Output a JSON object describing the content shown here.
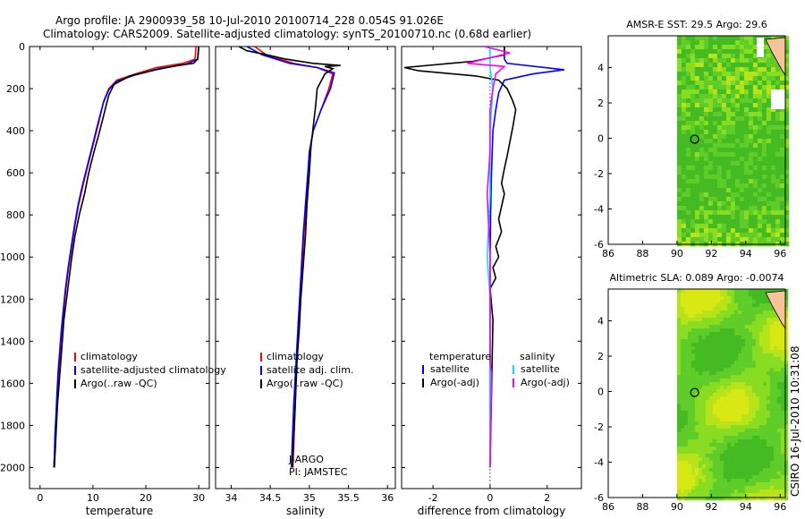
{
  "header": {
    "line1": "Argo profile: JA 2900939_58 10-Jul-2010 20100714_228 0.054S 91.026E",
    "line2": "Climatology: CARS2009. Satellite-adjusted climatology: synTS_20100710.nc (0.68d earlier)"
  },
  "side_label": "CSIRO 16-Jul-2010 10:31:08",
  "colors": {
    "climatology": "#ff0000",
    "satellite": "#0000ff",
    "argo": "#000000",
    "sat_salinity": "#00e5ff",
    "argo_salinity": "#ff00ff",
    "map_green": "#55cc22",
    "map_yellow": "#d4e600",
    "land": "#f7c39a"
  },
  "chart_data": [
    {
      "type": "line",
      "name": "temperature-profile",
      "xlabel": "temperature",
      "xlim": [
        -2,
        32
      ],
      "ylim": [
        2100,
        0
      ],
      "xticks": [
        0,
        10,
        20,
        30
      ],
      "yticks": [
        0,
        200,
        400,
        600,
        800,
        1000,
        1200,
        1400,
        1600,
        1800,
        2000
      ],
      "legend": [
        "climatology",
        "satellite-adjusted climatology",
        "Argo(..raw -QC)"
      ],
      "series": [
        {
          "name": "climatology",
          "color": "#ff0000",
          "points": [
            [
              29.5,
              0
            ],
            [
              29.3,
              60
            ],
            [
              27,
              80
            ],
            [
              22,
              100
            ],
            [
              18,
              130
            ],
            [
              14.5,
              160
            ],
            [
              13,
              200
            ],
            [
              12,
              260
            ],
            [
              11.2,
              350
            ],
            [
              10.2,
              450
            ],
            [
              9.2,
              550
            ],
            [
              8.2,
              650
            ],
            [
              7.3,
              750
            ],
            [
              6.6,
              850
            ],
            [
              6,
              950
            ],
            [
              5.4,
              1050
            ],
            [
              4.9,
              1150
            ],
            [
              4.5,
              1250
            ],
            [
              4.1,
              1350
            ],
            [
              3.8,
              1450
            ],
            [
              3.5,
              1550
            ],
            [
              3.3,
              1650
            ],
            [
              3.1,
              1750
            ],
            [
              2.9,
              1850
            ],
            [
              2.7,
              1950
            ],
            [
              2.6,
              2000
            ]
          ]
        },
        {
          "name": "satellite-adjusted climatology",
          "color": "#0000ff",
          "points": [
            [
              30,
              0
            ],
            [
              29.8,
              60
            ],
            [
              27.5,
              85
            ],
            [
              22.5,
              105
            ],
            [
              18,
              135
            ],
            [
              14.5,
              165
            ],
            [
              13,
              205
            ],
            [
              12,
              265
            ],
            [
              11.1,
              350
            ],
            [
              10.1,
              450
            ],
            [
              9.1,
              550
            ],
            [
              8.1,
              650
            ],
            [
              7.2,
              750
            ],
            [
              6.5,
              850
            ],
            [
              5.9,
              950
            ],
            [
              5.3,
              1050
            ],
            [
              4.8,
              1150
            ],
            [
              4.4,
              1250
            ],
            [
              4,
              1350
            ],
            [
              3.7,
              1450
            ],
            [
              3.4,
              1550
            ],
            [
              3.2,
              1650
            ],
            [
              3,
              1750
            ],
            [
              2.8,
              1850
            ],
            [
              2.7,
              1950
            ],
            [
              2.6,
              2000
            ]
          ]
        },
        {
          "name": "Argo(..raw -QC)",
          "color": "#000000",
          "points": [
            [
              30,
              0
            ],
            [
              29.8,
              60
            ],
            [
              29,
              80
            ],
            [
              26,
              90
            ],
            [
              22,
              110
            ],
            [
              17,
              140
            ],
            [
              14,
              180
            ],
            [
              13,
              230
            ],
            [
              12.3,
              300
            ],
            [
              11.3,
              400
            ],
            [
              10.2,
              500
            ],
            [
              9.2,
              600
            ],
            [
              8.4,
              700
            ],
            [
              7.4,
              800
            ],
            [
              6.6,
              900
            ],
            [
              6,
              1000
            ],
            [
              5.5,
              1100
            ],
            [
              5,
              1200
            ],
            [
              4.5,
              1300
            ],
            [
              4.2,
              1400
            ],
            [
              3.9,
              1500
            ],
            [
              3.6,
              1600
            ],
            [
              3.3,
              1700
            ],
            [
              3.1,
              1800
            ],
            [
              2.9,
              1900
            ],
            [
              2.7,
              2000
            ]
          ]
        }
      ]
    },
    {
      "type": "line",
      "name": "salinity-profile",
      "xlabel": "salinity",
      "xlim": [
        33.8,
        36.1
      ],
      "ylim": [
        2100,
        0
      ],
      "xticks": [
        34,
        34.5,
        35,
        35.5,
        36
      ],
      "legend": [
        "climatology",
        "satellite adj. clim.",
        "Argo(..raw -QC)"
      ],
      "annotations": [
        "J-ARGO",
        "PI: JAMSTEC"
      ],
      "series": [
        {
          "name": "climatology",
          "color": "#ff0000",
          "points": [
            [
              34.3,
              0
            ],
            [
              34.45,
              40
            ],
            [
              34.8,
              80
            ],
            [
              35.1,
              100
            ],
            [
              35.3,
              130
            ],
            [
              35.25,
              200
            ],
            [
              35.15,
              300
            ],
            [
              35.05,
              400
            ],
            [
              35,
              500
            ],
            [
              34.97,
              700
            ],
            [
              34.93,
              900
            ],
            [
              34.9,
              1100
            ],
            [
              34.87,
              1300
            ],
            [
              34.84,
              1500
            ],
            [
              34.82,
              1700
            ],
            [
              34.8,
              1900
            ],
            [
              34.79,
              2000
            ]
          ]
        },
        {
          "name": "satellite adj. clim.",
          "color": "#0000ff",
          "points": [
            [
              34.2,
              0
            ],
            [
              34.4,
              40
            ],
            [
              34.75,
              80
            ],
            [
              35.1,
              100
            ],
            [
              35.32,
              125
            ],
            [
              35.27,
              200
            ],
            [
              35.15,
              300
            ],
            [
              35.05,
              400
            ],
            [
              35,
              500
            ],
            [
              34.96,
              700
            ],
            [
              34.92,
              900
            ],
            [
              34.89,
              1100
            ],
            [
              34.86,
              1300
            ],
            [
              34.83,
              1500
            ],
            [
              34.8,
              1700
            ],
            [
              34.78,
              1900
            ],
            [
              34.77,
              2000
            ]
          ]
        },
        {
          "name": "Argo(..raw -QC)",
          "color": "#000000",
          "points": [
            [
              34.1,
              0
            ],
            [
              34.2,
              20
            ],
            [
              34.4,
              35
            ],
            [
              34.7,
              60
            ],
            [
              35.05,
              80
            ],
            [
              35.4,
              90
            ],
            [
              35.2,
              95
            ],
            [
              35.3,
              105
            ],
            [
              35.2,
              130
            ],
            [
              35.1,
              200
            ],
            [
              35.08,
              280
            ],
            [
              35.05,
              380
            ],
            [
              35.02,
              480
            ],
            [
              35,
              600
            ],
            [
              34.97,
              750
            ],
            [
              34.95,
              900
            ],
            [
              34.92,
              1050
            ],
            [
              34.89,
              1200
            ],
            [
              34.87,
              1350
            ],
            [
              34.84,
              1500
            ],
            [
              34.82,
              1700
            ],
            [
              34.8,
              1850
            ],
            [
              34.78,
              2000
            ]
          ]
        }
      ]
    },
    {
      "type": "line",
      "name": "difference-profile",
      "xlabel": "difference from climatology",
      "xlim": [
        -3.1,
        3.2
      ],
      "ylim": [
        2100,
        0
      ],
      "xticks": [
        -2,
        0,
        2
      ],
      "legend": {
        "temperature": [
          "satellite",
          "Argo(-adj)"
        ],
        "salinity": [
          "satellite",
          "Argo(-adj)"
        ]
      },
      "legend_headers": [
        "temperature",
        "salinity"
      ],
      "series": [
        {
          "name": "temperature satellite",
          "color": "#0000ff",
          "points": [
            [
              0.5,
              0
            ],
            [
              0.5,
              60
            ],
            [
              0.6,
              80
            ],
            [
              2.6,
              110
            ],
            [
              1.5,
              130
            ],
            [
              0.5,
              160
            ],
            [
              0.3,
              220
            ],
            [
              0.2,
              300
            ],
            [
              0.1,
              400
            ],
            [
              0.05,
              600
            ],
            [
              0.02,
              800
            ],
            [
              0,
              1000
            ],
            [
              0,
              1200
            ],
            [
              0,
              1500
            ],
            [
              0,
              2000
            ]
          ]
        },
        {
          "name": "temperature Argo(-adj)",
          "color": "#000000",
          "points": [
            [
              0.5,
              0
            ],
            [
              0.5,
              40
            ],
            [
              -0.6,
              70
            ],
            [
              -3,
              100
            ],
            [
              -2.5,
              115
            ],
            [
              -0.5,
              140
            ],
            [
              0.3,
              160
            ],
            [
              0.6,
              200
            ],
            [
              0.8,
              260
            ],
            [
              0.9,
              300
            ],
            [
              0.8,
              380
            ],
            [
              0.7,
              450
            ],
            [
              0.6,
              520
            ],
            [
              0.5,
              580
            ],
            [
              0.4,
              650
            ],
            [
              0.5,
              700
            ],
            [
              0.4,
              760
            ],
            [
              0.3,
              820
            ],
            [
              0.4,
              880
            ],
            [
              0.2,
              950
            ],
            [
              0.3,
              1000
            ],
            [
              0.1,
              1050
            ],
            [
              0.2,
              1100
            ],
            [
              0,
              1150
            ],
            [
              0.1,
              1300
            ],
            [
              0,
              2000
            ]
          ]
        },
        {
          "name": "salinity satellite",
          "color": "#00e5ff",
          "points": [
            [
              0,
              0
            ],
            [
              0,
              100
            ],
            [
              0.1,
              200
            ],
            [
              0,
              400
            ],
            [
              0,
              700
            ],
            [
              -0.1,
              1000
            ],
            [
              0,
              1200
            ],
            [
              0,
              1400
            ],
            [
              0,
              2000
            ]
          ]
        },
        {
          "name": "salinity Argo(-adj)",
          "color": "#ff00ff",
          "points": [
            [
              -0.2,
              0
            ],
            [
              0.7,
              30
            ],
            [
              -0.8,
              80
            ],
            [
              0.5,
              95
            ],
            [
              0.2,
              130
            ],
            [
              0.1,
              200
            ],
            [
              0,
              300
            ],
            [
              0,
              500
            ],
            [
              -0.1,
              700
            ],
            [
              0,
              1000
            ],
            [
              0,
              1500
            ],
            [
              0.05,
              1550
            ],
            [
              0,
              2000
            ]
          ]
        }
      ]
    },
    {
      "type": "heatmap",
      "name": "amsr-sst-map",
      "title": "AMSR-E SST: 29.5 Argo: 29.6",
      "xlim": [
        86,
        96.3
      ],
      "ylim": [
        -6,
        5.8
      ],
      "xticks": [
        86,
        88,
        90,
        92,
        94,
        96
      ],
      "yticks": [
        -6,
        -4,
        -2,
        0,
        2,
        4
      ],
      "marker": {
        "lon": 91.026,
        "lat": -0.054
      }
    },
    {
      "type": "heatmap",
      "name": "altimetric-sla-map",
      "title": "Altimetric SLA: 0.089 Argo: -0.0074",
      "xlim": [
        86,
        96.3
      ],
      "ylim": [
        -6,
        5.8
      ],
      "xticks": [
        86,
        88,
        90,
        92,
        94,
        96
      ],
      "yticks": [
        -6,
        -4,
        -2,
        0,
        2,
        4
      ],
      "marker": {
        "lon": 91.026,
        "lat": -0.054
      }
    }
  ]
}
